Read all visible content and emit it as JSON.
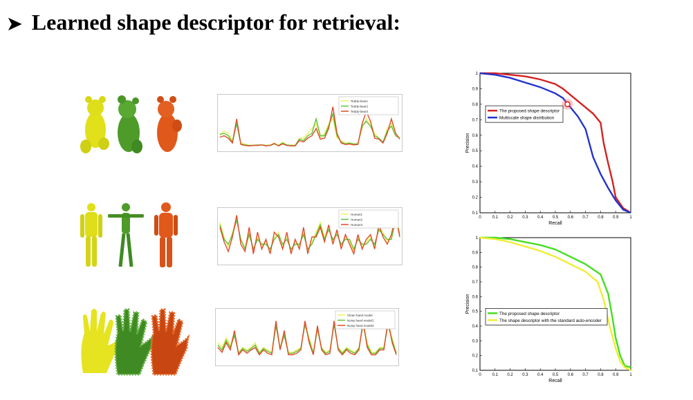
{
  "slide": {
    "bullet_icon": "arrowhead-icon",
    "heading": "Learned shape descriptor for retrieval:"
  },
  "shape_rows": [
    {
      "name": "teddy",
      "colors": [
        "#e1e01a",
        "#4e9b2a",
        "#e0581a"
      ]
    },
    {
      "name": "human",
      "colors": [
        "#e1e01a",
        "#4e9b2a",
        "#e0581a"
      ]
    },
    {
      "name": "hand",
      "colors": [
        "#e1e01a",
        "#4e9b2a",
        "#e0581a"
      ]
    }
  ],
  "descriptor_plots": [
    {
      "legend": [
        "Teddy-bear1",
        "Teddy-bear2",
        "Teddy-bear3"
      ],
      "colors": [
        "#f0f060",
        "#5ec23a",
        "#e04a2a"
      ],
      "series": [
        [
          0.25,
          0.35,
          0.3,
          0.15,
          0.55,
          0.1,
          0.08,
          0.05,
          0.06,
          0.05,
          0.07,
          0.05,
          0.06,
          0.1,
          0.05,
          0.12,
          0.05,
          0.06,
          0.05,
          0.2,
          0.2,
          0.3,
          0.4,
          0.5,
          0.2,
          0.3,
          0.5,
          0.6,
          0.2,
          0.15,
          0.1,
          0.1,
          0.08,
          0.1,
          0.4,
          0.6,
          0.5,
          0.3,
          0.2,
          0.1,
          0.4,
          0.5,
          0.3,
          0.2
        ],
        [
          0.28,
          0.3,
          0.25,
          0.12,
          0.5,
          0.08,
          0.06,
          0.05,
          0.05,
          0.06,
          0.06,
          0.05,
          0.05,
          0.08,
          0.05,
          0.1,
          0.06,
          0.05,
          0.05,
          0.18,
          0.15,
          0.25,
          0.3,
          0.6,
          0.25,
          0.25,
          0.45,
          0.7,
          0.25,
          0.12,
          0.08,
          0.1,
          0.08,
          0.08,
          0.45,
          0.55,
          0.45,
          0.25,
          0.2,
          0.12,
          0.35,
          0.45,
          0.25,
          0.2
        ],
        [
          0.22,
          0.25,
          0.2,
          0.1,
          0.6,
          0.07,
          0.05,
          0.04,
          0.05,
          0.05,
          0.06,
          0.04,
          0.05,
          0.09,
          0.04,
          0.08,
          0.05,
          0.04,
          0.04,
          0.15,
          0.12,
          0.2,
          0.25,
          0.4,
          0.18,
          0.2,
          0.4,
          0.85,
          0.3,
          0.1,
          0.07,
          0.08,
          0.06,
          0.07,
          0.5,
          0.75,
          0.55,
          0.2,
          0.18,
          0.1,
          0.3,
          0.6,
          0.3,
          0.18
        ]
      ]
    },
    {
      "legend": [
        "Human1",
        "Human2",
        "Human3"
      ],
      "colors": [
        "#f0f060",
        "#5ec23a",
        "#e04a2a"
      ],
      "series": [
        [
          0.8,
          0.5,
          0.3,
          0.6,
          0.9,
          0.4,
          0.3,
          0.6,
          0.2,
          0.5,
          0.3,
          0.4,
          0.2,
          0.5,
          0.6,
          0.3,
          0.5,
          0.2,
          0.4,
          0.3,
          0.6,
          0.2,
          0.4,
          0.6,
          0.8,
          0.5,
          0.7,
          0.4,
          0.6,
          0.3,
          0.5,
          0.4,
          0.2,
          0.5,
          0.3,
          0.4,
          0.5,
          0.3,
          0.7,
          0.6,
          0.4,
          0.5,
          0.9,
          0.6
        ],
        [
          0.75,
          0.45,
          0.35,
          0.55,
          0.85,
          0.45,
          0.25,
          0.55,
          0.25,
          0.45,
          0.35,
          0.35,
          0.25,
          0.45,
          0.55,
          0.35,
          0.45,
          0.25,
          0.35,
          0.35,
          0.55,
          0.25,
          0.35,
          0.55,
          0.75,
          0.45,
          0.65,
          0.45,
          0.55,
          0.35,
          0.45,
          0.45,
          0.25,
          0.45,
          0.35,
          0.35,
          0.45,
          0.35,
          0.65,
          0.55,
          0.45,
          0.45,
          0.85,
          0.55
        ],
        [
          0.7,
          0.4,
          0.2,
          0.5,
          0.95,
          0.35,
          0.2,
          0.7,
          0.15,
          0.6,
          0.25,
          0.45,
          0.15,
          0.6,
          0.5,
          0.25,
          0.6,
          0.15,
          0.45,
          0.25,
          0.7,
          0.15,
          0.5,
          0.5,
          0.7,
          0.4,
          0.75,
          0.35,
          0.65,
          0.25,
          0.55,
          0.35,
          0.15,
          0.55,
          0.25,
          0.45,
          0.55,
          0.25,
          0.75,
          0.5,
          0.35,
          0.55,
          0.95,
          0.5
        ]
      ]
    },
    {
      "legend": [
        "Clean hand model",
        "Noisy hand model1",
        "Noisy hand model2"
      ],
      "colors": [
        "#f0f060",
        "#5ec23a",
        "#e04a2a"
      ],
      "series": [
        [
          0.4,
          0.3,
          0.5,
          0.35,
          0.6,
          0.2,
          0.3,
          0.25,
          0.3,
          0.4,
          0.2,
          0.3,
          0.25,
          0.2,
          0.8,
          0.3,
          0.6,
          0.2,
          0.2,
          0.25,
          0.3,
          0.8,
          0.5,
          0.2,
          0.7,
          0.3,
          0.2,
          0.25,
          0.8,
          0.3,
          0.2,
          0.3,
          0.25,
          0.2,
          0.3,
          0.8,
          0.4,
          0.2,
          0.2,
          0.3,
          0.3,
          0.8,
          0.5,
          0.2
        ],
        [
          0.35,
          0.25,
          0.45,
          0.3,
          0.55,
          0.18,
          0.28,
          0.22,
          0.28,
          0.35,
          0.18,
          0.28,
          0.22,
          0.18,
          0.75,
          0.28,
          0.55,
          0.18,
          0.18,
          0.22,
          0.28,
          0.78,
          0.45,
          0.18,
          0.68,
          0.28,
          0.18,
          0.22,
          0.78,
          0.28,
          0.18,
          0.28,
          0.22,
          0.18,
          0.28,
          0.78,
          0.35,
          0.18,
          0.18,
          0.28,
          0.28,
          0.78,
          0.45,
          0.18
        ],
        [
          0.3,
          0.2,
          0.4,
          0.25,
          0.65,
          0.15,
          0.25,
          0.18,
          0.25,
          0.3,
          0.15,
          0.25,
          0.18,
          0.15,
          0.85,
          0.25,
          0.65,
          0.15,
          0.15,
          0.18,
          0.25,
          0.85,
          0.4,
          0.15,
          0.75,
          0.25,
          0.15,
          0.18,
          0.85,
          0.25,
          0.15,
          0.25,
          0.18,
          0.15,
          0.25,
          0.85,
          0.3,
          0.15,
          0.15,
          0.25,
          0.25,
          0.85,
          0.4,
          0.15
        ]
      ]
    }
  ],
  "chart_data": [
    {
      "type": "line",
      "xlabel": "Recall",
      "ylabel": "Precision",
      "xlim": [
        0,
        1
      ],
      "ylim": [
        0.1,
        1
      ],
      "xticks": [
        "0",
        "0.1",
        "0.2",
        "0.3",
        "0.4",
        "0.5",
        "0.6",
        "0.7",
        "0.8",
        "0.9",
        "1"
      ],
      "yticks": [
        "0.1",
        "0.2",
        "0.3",
        "0.4",
        "0.5",
        "0.6",
        "0.7",
        "0.8",
        "0.9",
        "1"
      ],
      "legend_position": "center-left",
      "series": [
        {
          "name": "The proposed shape descriptor",
          "color": "#d62020",
          "x": [
            0,
            0.1,
            0.2,
            0.3,
            0.4,
            0.5,
            0.55,
            0.6,
            0.65,
            0.7,
            0.75,
            0.8,
            0.82,
            0.85,
            0.88,
            0.9,
            0.95,
            1.0
          ],
          "y": [
            1,
            1,
            0.99,
            0.98,
            0.96,
            0.93,
            0.9,
            0.86,
            0.82,
            0.78,
            0.74,
            0.68,
            0.55,
            0.42,
            0.3,
            0.2,
            0.13,
            0.1
          ]
        },
        {
          "name": "Multiscale shape distribution",
          "color": "#2233cc",
          "x": [
            0,
            0.1,
            0.2,
            0.3,
            0.4,
            0.5,
            0.55,
            0.6,
            0.65,
            0.7,
            0.75,
            0.8,
            0.85,
            0.9,
            0.95,
            1.0
          ],
          "y": [
            1,
            0.99,
            0.97,
            0.94,
            0.91,
            0.87,
            0.84,
            0.78,
            0.72,
            0.64,
            0.46,
            0.35,
            0.26,
            0.18,
            0.12,
            0.1
          ]
        }
      ],
      "highlight": {
        "x": 0.58,
        "y": 0.8
      }
    },
    {
      "type": "line",
      "xlabel": "Recall",
      "ylabel": "Precision",
      "xlim": [
        0,
        1
      ],
      "ylim": [
        0.1,
        1
      ],
      "xticks": [
        "0",
        "0.1",
        "0.2",
        "0.3",
        "0.4",
        "0.5",
        "0.6",
        "0.7",
        "0.8",
        "0.9",
        "1"
      ],
      "yticks": [
        "0.1",
        "0.2",
        "0.3",
        "0.4",
        "0.5",
        "0.6",
        "0.7",
        "0.8",
        "0.9",
        "1"
      ],
      "legend_position": "bottom-left",
      "series": [
        {
          "name": "The proposed shape descriptor",
          "color": "#44dd22",
          "x": [
            0,
            0.1,
            0.2,
            0.3,
            0.4,
            0.5,
            0.6,
            0.7,
            0.8,
            0.85,
            0.88,
            0.9,
            0.93,
            0.96,
            1.0
          ],
          "y": [
            1,
            1,
            0.99,
            0.97,
            0.95,
            0.92,
            0.87,
            0.82,
            0.75,
            0.62,
            0.45,
            0.32,
            0.2,
            0.13,
            0.12
          ]
        },
        {
          "name": "The shape descriptor with the standard auto-encoder",
          "color": "#eeee33",
          "x": [
            0,
            0.1,
            0.2,
            0.3,
            0.4,
            0.5,
            0.6,
            0.7,
            0.78,
            0.82,
            0.86,
            0.9,
            0.93,
            0.96,
            1.0
          ],
          "y": [
            1,
            0.99,
            0.97,
            0.94,
            0.91,
            0.87,
            0.82,
            0.77,
            0.7,
            0.58,
            0.4,
            0.25,
            0.16,
            0.12,
            0.1
          ]
        }
      ]
    }
  ]
}
